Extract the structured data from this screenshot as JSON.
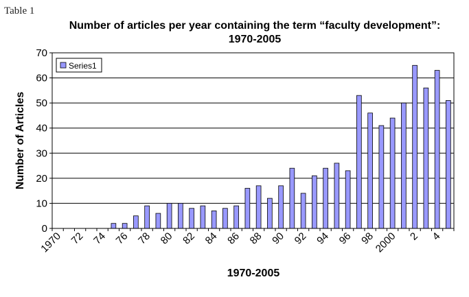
{
  "caption": "Table 1",
  "chart_data": {
    "type": "bar",
    "title": "Number of articles per year containing the term “faculty development”:",
    "subtitle": "1970-2005",
    "xlabel": "1970-2005",
    "ylabel": "Number of Articles",
    "ylim": [
      0,
      70
    ],
    "yticks": [
      0,
      10,
      20,
      30,
      40,
      50,
      60,
      70
    ],
    "grid": true,
    "legend": "top-left",
    "bar_color": "#9999ff",
    "categories": [
      "1970",
      "71",
      "72",
      "73",
      "74",
      "75",
      "76",
      "77",
      "78",
      "79",
      "80",
      "81",
      "82",
      "83",
      "84",
      "85",
      "86",
      "87",
      "88",
      "89",
      "90",
      "91",
      "92",
      "93",
      "94",
      "95",
      "96",
      "97",
      "98",
      "99",
      "2000",
      "1",
      "2",
      "3",
      "4",
      "5"
    ],
    "xtick_labels": [
      "1970",
      "72",
      "74",
      "76",
      "78",
      "80",
      "82",
      "84",
      "86",
      "88",
      "90",
      "92",
      "94",
      "96",
      "98",
      "2000",
      "2",
      "4"
    ],
    "series": [
      {
        "name": "Series1",
        "values": [
          0,
          0,
          0,
          0,
          0,
          2,
          2,
          5,
          9,
          6,
          10,
          10,
          8,
          9,
          7,
          8,
          9,
          16,
          17,
          12,
          17,
          24,
          14,
          21,
          24,
          26,
          23,
          53,
          46,
          41,
          44,
          50,
          65,
          56,
          63,
          51
        ]
      }
    ]
  }
}
